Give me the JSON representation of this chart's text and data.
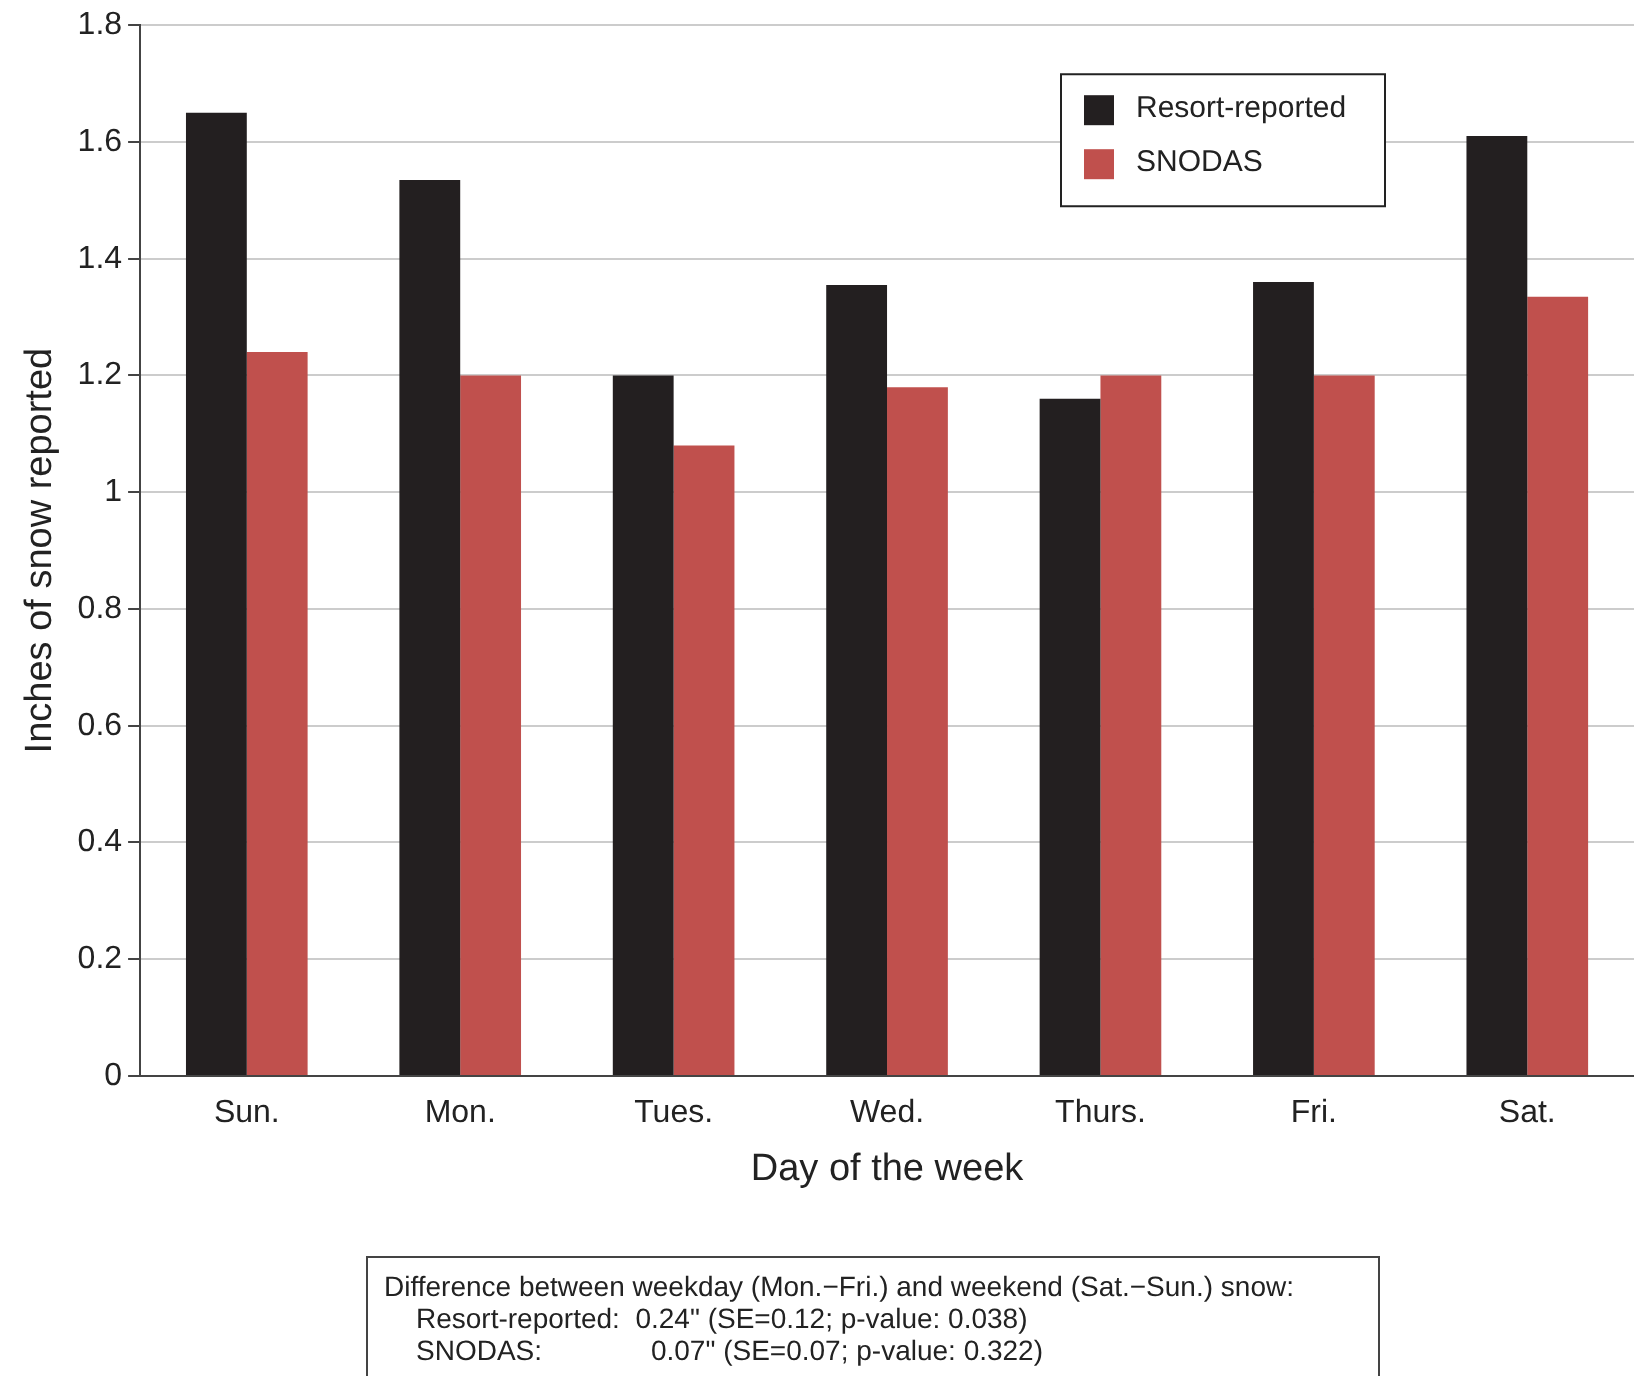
{
  "chart_data": {
    "type": "bar",
    "xlabel": "Day of the week",
    "ylabel": "Inches of snow reported",
    "categories": [
      "Sun.",
      "Mon.",
      "Tues.",
      "Wed.",
      "Thurs.",
      "Fri.",
      "Sat."
    ],
    "series": [
      {
        "name": "Resort-reported",
        "color": "#231f20",
        "values": [
          1.65,
          1.535,
          1.2,
          1.355,
          1.16,
          1.36,
          1.61
        ]
      },
      {
        "name": "SNODAS",
        "color": "#c0504d",
        "values": [
          1.24,
          1.2,
          1.08,
          1.18,
          1.2,
          1.2,
          1.335
        ]
      }
    ],
    "ylim": [
      0,
      1.8
    ],
    "yticks": [
      0,
      0.2,
      0.4,
      0.6,
      0.8,
      1,
      1.2,
      1.4,
      1.6,
      1.8
    ],
    "grid": "y",
    "legend": "top right",
    "annotations": [
      "Difference between weekday (Mon.−Fri.) and weekend (Sat.−Sun.) snow:",
      "Resort-reported:  0.24\" (SE=0.12; p-value: 0.038)",
      "SNODAS:              0.07\" (SE=0.07; p-value: 0.322)"
    ]
  }
}
